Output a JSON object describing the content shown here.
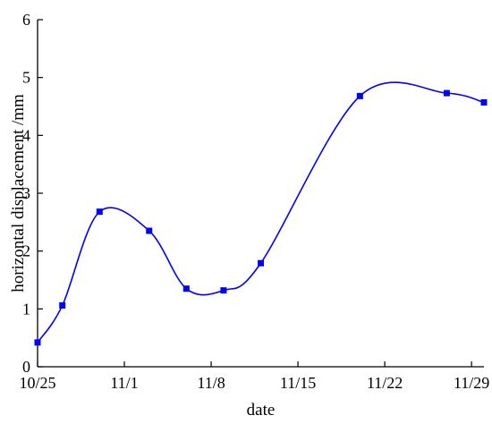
{
  "chart_data": {
    "type": "line",
    "xlabel": "date",
    "ylabel": "horizontal displacement /mm",
    "ylim": [
      0,
      6
    ],
    "y_ticks": [
      0,
      1,
      2,
      3,
      4,
      5,
      6
    ],
    "xlim": [
      "10/25",
      "11/30"
    ],
    "x_ticks": [
      {
        "date": "10/25",
        "label": "10/25"
      },
      {
        "date": "11/1",
        "label": "11/1"
      },
      {
        "date": "11/8",
        "label": "11/8"
      },
      {
        "date": "11/15",
        "label": "11/15"
      },
      {
        "date": "11/22",
        "label": "11/22"
      },
      {
        "date": "11/29",
        "label": "11/29"
      }
    ],
    "grid": false,
    "series": [
      {
        "color": "#0000ff",
        "marker": "square",
        "smooth": true,
        "points": [
          {
            "x": "10/25",
            "y": 0.42
          },
          {
            "x": "10/27",
            "y": 1.06
          },
          {
            "x": "10/30",
            "y": 2.68
          },
          {
            "x": "11/3",
            "y": 2.35
          },
          {
            "x": "11/6",
            "y": 1.35
          },
          {
            "x": "11/9",
            "y": 1.32
          },
          {
            "x": "11/12",
            "y": 1.79
          },
          {
            "x": "11/20",
            "y": 4.68
          },
          {
            "x": "11/27",
            "y": 4.73
          },
          {
            "x": "11/30",
            "y": 4.57
          }
        ]
      }
    ]
  }
}
